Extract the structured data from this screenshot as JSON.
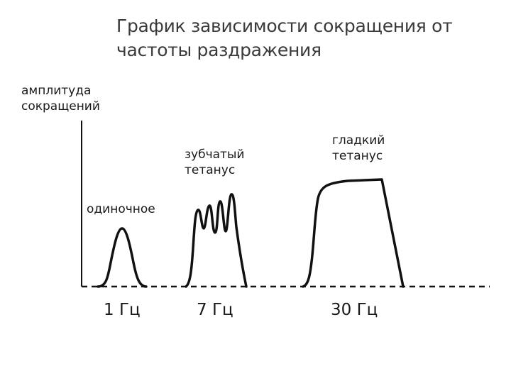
{
  "title": {
    "line1": "График зависимости сокращения от",
    "line2": "частоты раздражения"
  },
  "y_axis_label": {
    "line1": "амплитуда",
    "line2": "сокращений"
  },
  "curves": [
    {
      "label_lines": [
        "одиночное"
      ],
      "frequency": "1 Гц",
      "type": "single twitch"
    },
    {
      "label_lines": [
        "зубчатый",
        "тетанус"
      ],
      "frequency": "7 Гц",
      "type": "incomplete tetanus"
    },
    {
      "label_lines": [
        "гладкий",
        "тетанус"
      ],
      "frequency": "30 Гц",
      "type": "complete tetanus"
    }
  ],
  "colors": {
    "line": "#111111",
    "title": "#3a3a3a"
  }
}
